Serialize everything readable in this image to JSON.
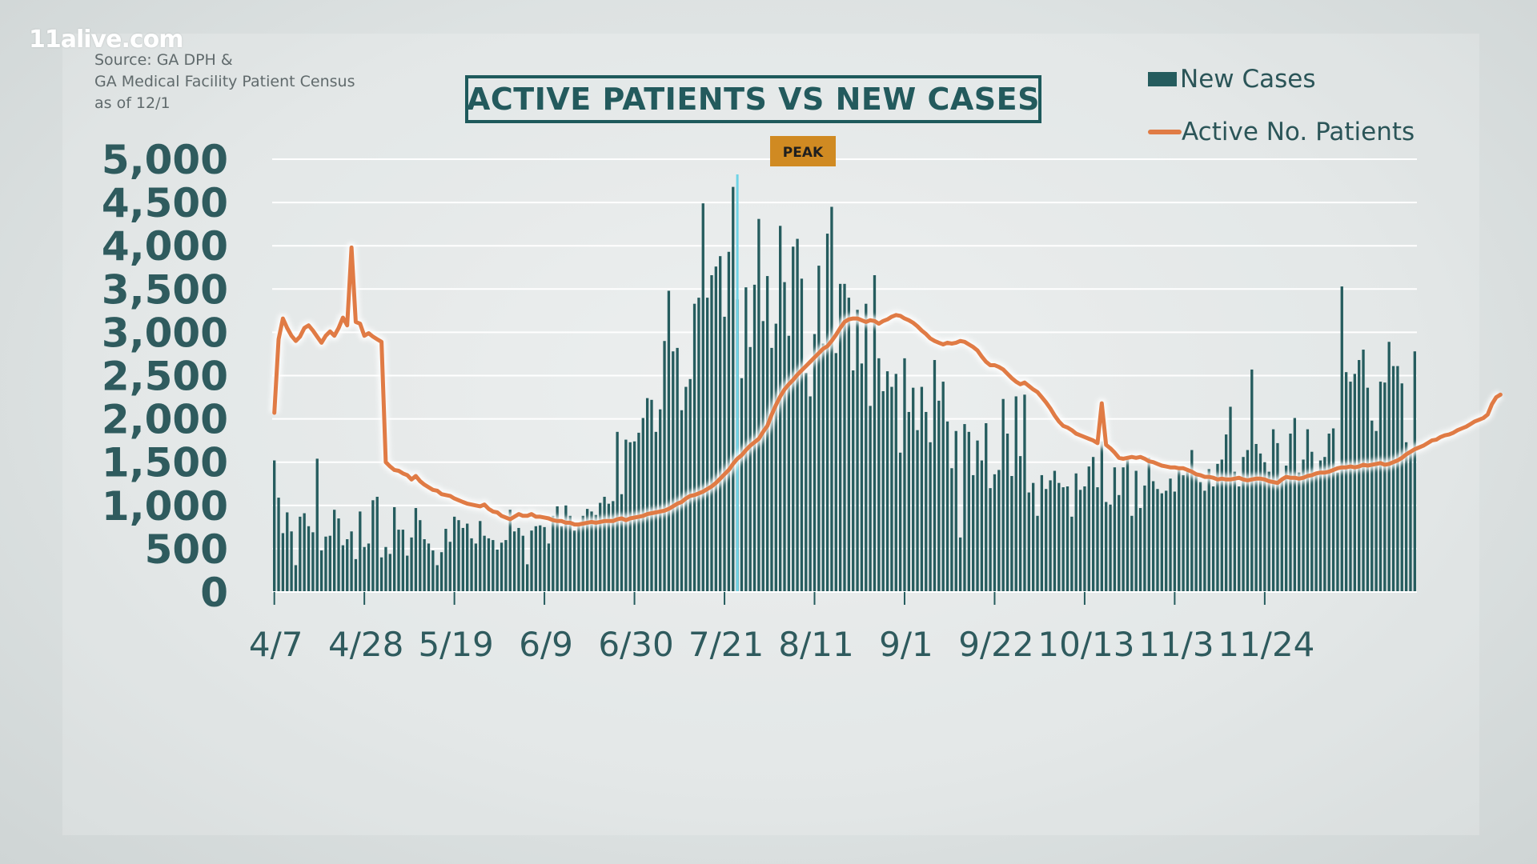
{
  "watermark": "11alive.com",
  "source": {
    "line1": "Source: GA DPH &",
    "line2": "GA Medical Facility Patient Census",
    "line3": "as of 12/1"
  },
  "colors": {
    "bars": "#255c5e",
    "line": "#e07b45",
    "peak_line": "#6fd3e6",
    "peak_box": "#d08a22",
    "grid": "#ffffff",
    "text": "#2f5b5e"
  },
  "chart_data": {
    "type": "bar",
    "title": "ACTIVE PATIENTS VS NEW CASES",
    "ylim": [
      0,
      5000
    ],
    "y_ticks": [
      "0",
      "500",
      "1,000",
      "1,500",
      "2,000",
      "2,500",
      "3,000",
      "3,500",
      "4,000",
      "4,500",
      "5,000"
    ],
    "x_tick_labels": [
      "4/7",
      "4/28",
      "5/19",
      "6/9",
      "6/30",
      "7/21",
      "8/11",
      "9/1",
      "9/22",
      "10/13",
      "11/3",
      "11/24"
    ],
    "grid": true,
    "legend_position": "top-right",
    "annotation": {
      "label": "PEAK",
      "date": "7/24"
    },
    "series": [
      {
        "name": "New Cases",
        "type": "bar",
        "values": [
          1520,
          1090,
          680,
          920,
          700,
          310,
          870,
          910,
          760,
          690,
          1540,
          480,
          640,
          650,
          950,
          850,
          540,
          610,
          700,
          380,
          930,
          520,
          560,
          1060,
          1100,
          400,
          520,
          440,
          980,
          720,
          720,
          420,
          630,
          970,
          830,
          610,
          560,
          480,
          310,
          460,
          730,
          580,
          870,
          830,
          740,
          790,
          620,
          560,
          820,
          650,
          620,
          600,
          490,
          570,
          600,
          950,
          700,
          740,
          650,
          320,
          710,
          760,
          770,
          750,
          560,
          880,
          990,
          760,
          1000,
          880,
          710,
          790,
          880,
          960,
          930,
          890,
          1030,
          1100,
          1020,
          1050,
          1850,
          1130,
          1760,
          1730,
          1740,
          1840,
          2010,
          2240,
          2220,
          1850,
          2110,
          2900,
          3480,
          2780,
          2820,
          2100,
          2370,
          2460,
          3330,
          3400,
          4490,
          3400,
          3660,
          3760,
          3880,
          3180,
          3930,
          4680,
          3380,
          2470,
          3520,
          2830,
          3550,
          4310,
          3130,
          3650,
          2820,
          3100,
          4230,
          3580,
          2960,
          3990,
          4080,
          3620,
          2530,
          2260,
          2980,
          3770,
          2870,
          4140,
          4450,
          2760,
          3560,
          3560,
          3400,
          2560,
          3260,
          2640,
          3330,
          2150,
          3660,
          2700,
          2320,
          2550,
          2370,
          2520,
          1610,
          2700,
          2080,
          2360,
          1870,
          2370,
          2080,
          1730,
          2680,
          2210,
          2430,
          1970,
          1430,
          1860,
          630,
          1940,
          1850,
          1350,
          1750,
          1520,
          1950,
          1200,
          1360,
          1410,
          2230,
          1830,
          1340,
          2260,
          1570,
          2280,
          1150,
          1260,
          880,
          1350,
          1190,
          1290,
          1400,
          1260,
          1210,
          1220,
          870,
          1370,
          1180,
          1220,
          1450,
          1560,
          1210,
          1740,
          1040,
          1010,
          1440,
          1120,
          1440,
          1570,
          880,
          1400,
          970,
          1230,
          1550,
          1280,
          1190,
          1140,
          1170,
          1310,
          1160,
          1450,
          1350,
          1400,
          1640,
          1370,
          1270,
          1170,
          1420,
          1220,
          1480,
          1530,
          1820,
          2140,
          1390,
          1220,
          1560,
          1640,
          2570,
          1710,
          1600,
          1500,
          1390,
          1880,
          1720,
          1280,
          1460,
          1830,
          2010,
          1380,
          1530,
          1880,
          1620,
          1370,
          1520,
          1560,
          1830,
          1890,
          1380,
          3530,
          2540,
          2430,
          2520,
          2680,
          2800,
          2360,
          1980,
          1860,
          2430,
          2420,
          2890,
          2610,
          2610,
          2410,
          1730,
          1620,
          2780
        ],
        "color": "#255c5e"
      },
      {
        "name": "Active No. Patients",
        "type": "line",
        "values": [
          2070,
          2920,
          3160,
          3050,
          2960,
          2900,
          2950,
          3050,
          3080,
          3020,
          2950,
          2880,
          2960,
          3010,
          2960,
          3050,
          3170,
          3080,
          3980,
          3120,
          3100,
          2960,
          2990,
          2950,
          2920,
          2890,
          1500,
          1450,
          1410,
          1400,
          1370,
          1350,
          1300,
          1340,
          1280,
          1240,
          1210,
          1180,
          1170,
          1130,
          1120,
          1110,
          1080,
          1060,
          1040,
          1020,
          1010,
          1000,
          990,
          1010,
          960,
          930,
          920,
          880,
          860,
          840,
          870,
          900,
          880,
          880,
          900,
          870,
          870,
          860,
          850,
          830,
          820,
          820,
          800,
          800,
          780,
          780,
          790,
          800,
          810,
          800,
          810,
          820,
          820,
          820,
          840,
          850,
          830,
          850,
          860,
          870,
          880,
          900,
          910,
          920,
          930,
          940,
          960,
          990,
          1020,
          1040,
          1080,
          1110,
          1120,
          1140,
          1160,
          1190,
          1220,
          1260,
          1310,
          1360,
          1410,
          1480,
          1540,
          1580,
          1640,
          1690,
          1730,
          1770,
          1850,
          1920,
          2050,
          2160,
          2260,
          2340,
          2400,
          2450,
          2510,
          2560,
          2610,
          2660,
          2710,
          2760,
          2810,
          2840,
          2900,
          2970,
          3050,
          3120,
          3150,
          3160,
          3160,
          3140,
          3120,
          3140,
          3130,
          3100,
          3130,
          3150,
          3180,
          3200,
          3190,
          3160,
          3140,
          3110,
          3070,
          3020,
          2980,
          2930,
          2900,
          2880,
          2860,
          2880,
          2870,
          2880,
          2900,
          2890,
          2860,
          2830,
          2790,
          2720,
          2660,
          2620,
          2620,
          2600,
          2570,
          2520,
          2470,
          2430,
          2400,
          2420,
          2380,
          2340,
          2310,
          2250,
          2190,
          2120,
          2040,
          1970,
          1920,
          1900,
          1870,
          1830,
          1810,
          1790,
          1770,
          1750,
          1720,
          2180,
          1700,
          1660,
          1610,
          1550,
          1540,
          1550,
          1560,
          1550,
          1560,
          1540,
          1510,
          1500,
          1480,
          1460,
          1450,
          1440,
          1440,
          1430,
          1430,
          1410,
          1390,
          1360,
          1350,
          1330,
          1330,
          1320,
          1300,
          1310,
          1300,
          1300,
          1310,
          1320,
          1300,
          1290,
          1300,
          1310,
          1310,
          1300,
          1280,
          1270,
          1260,
          1300,
          1330,
          1320,
          1320,
          1310,
          1320,
          1340,
          1350,
          1370,
          1380,
          1380,
          1390,
          1410,
          1430,
          1440,
          1440,
          1450,
          1440,
          1450,
          1470,
          1460,
          1470,
          1480,
          1490,
          1470,
          1480,
          1500,
          1520,
          1550,
          1590,
          1620,
          1650,
          1670,
          1690,
          1720,
          1750,
          1760,
          1790,
          1810,
          1820,
          1840,
          1870,
          1890,
          1910,
          1940,
          1970,
          1990,
          2010,
          2050,
          2170,
          2250,
          2280
        ],
        "color": "#e07b45"
      }
    ]
  }
}
